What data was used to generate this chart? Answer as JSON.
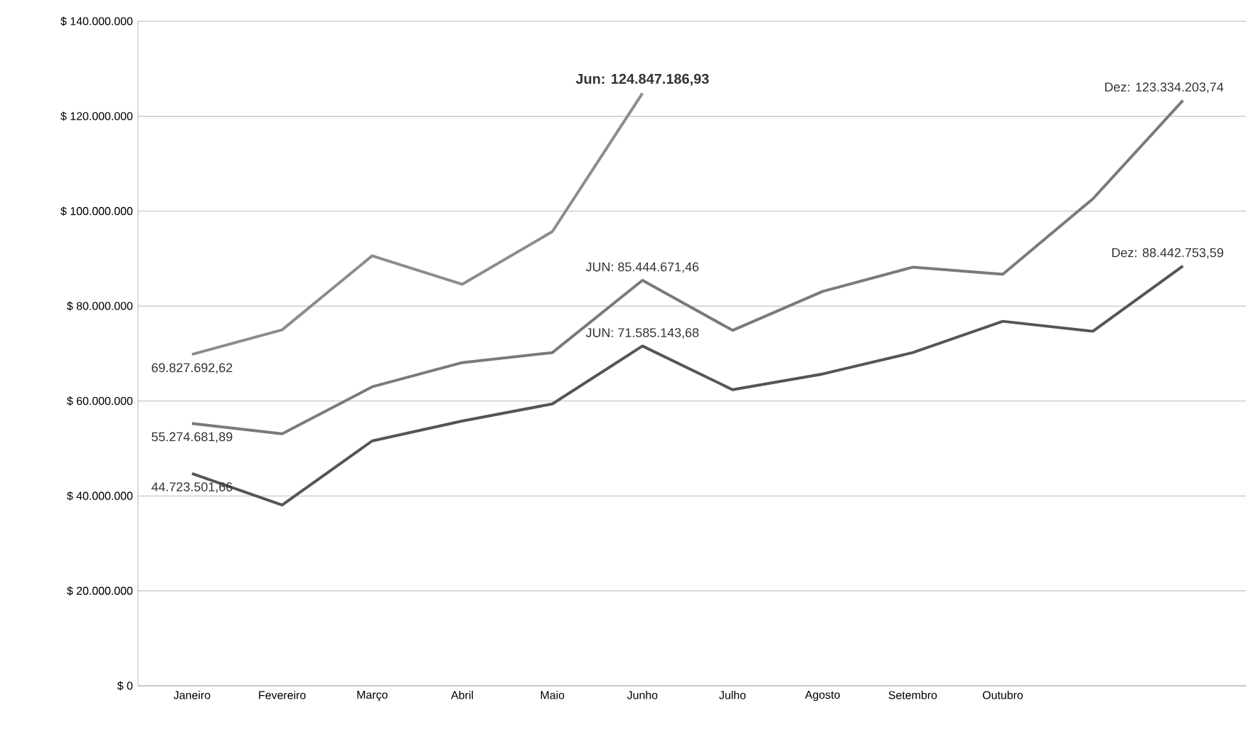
{
  "chart_data": {
    "type": "line",
    "categories": [
      "Janeiro",
      "Fevereiro",
      "Março",
      "Abril",
      "Maio",
      "Junho",
      "Julho",
      "Agosto",
      "Setembro",
      "Outubro",
      null,
      null
    ],
    "ylim": [
      0,
      140000000
    ],
    "yticks": [
      {
        "value": 0,
        "label": "$ 0"
      },
      {
        "value": 20000000,
        "label": "$ 20.000.000"
      },
      {
        "value": 40000000,
        "label": "$ 40.000.000"
      },
      {
        "value": 60000000,
        "label": "$ 60.000.000"
      },
      {
        "value": 80000000,
        "label": "$ 80.000.000"
      },
      {
        "value": 100000000,
        "label": "$ 100.000.000"
      },
      {
        "value": 120000000,
        "label": "$ 120.000.000"
      },
      {
        "value": 140000000,
        "label": "$ 140.000.000"
      }
    ],
    "grid": "y",
    "marker": "none",
    "line_style": "solid",
    "series": [
      {
        "color": "#8c8c8c",
        "values": [
          69827692.62,
          75000000,
          90600000,
          84600000,
          95700000,
          124847186.93,
          null,
          null,
          null,
          null,
          null,
          null
        ],
        "value_labels": [
          "69.827.692,62",
          null,
          null,
          null,
          null,
          "Jun: 124.847.186,93",
          null,
          null,
          null,
          null,
          null,
          null
        ]
      },
      {
        "color": "#7a7a7a",
        "values": [
          55274681.89,
          53100000,
          63000000,
          68100000,
          70200000,
          85444671.46,
          74900000,
          83100000,
          88200000,
          86700000,
          102600000,
          123334203.74
        ],
        "value_labels": [
          "55.274.681,89",
          null,
          null,
          null,
          null,
          "JUN: 85.444.671,46",
          null,
          null,
          null,
          null,
          null,
          "Dez: 123.334.203,74"
        ]
      },
      {
        "color": "#555555",
        "values": [
          44723501.66,
          38100000,
          51600000,
          55800000,
          59400000,
          71585143.68,
          62400000,
          65700000,
          70200000,
          76800000,
          74700000,
          88442753.59
        ],
        "value_labels": [
          "44.723.501,66",
          null,
          null,
          null,
          null,
          "JUN: 71.585.143,68",
          null,
          null,
          null,
          null,
          null,
          "Dez: 88.442.753,59"
        ]
      }
    ]
  }
}
